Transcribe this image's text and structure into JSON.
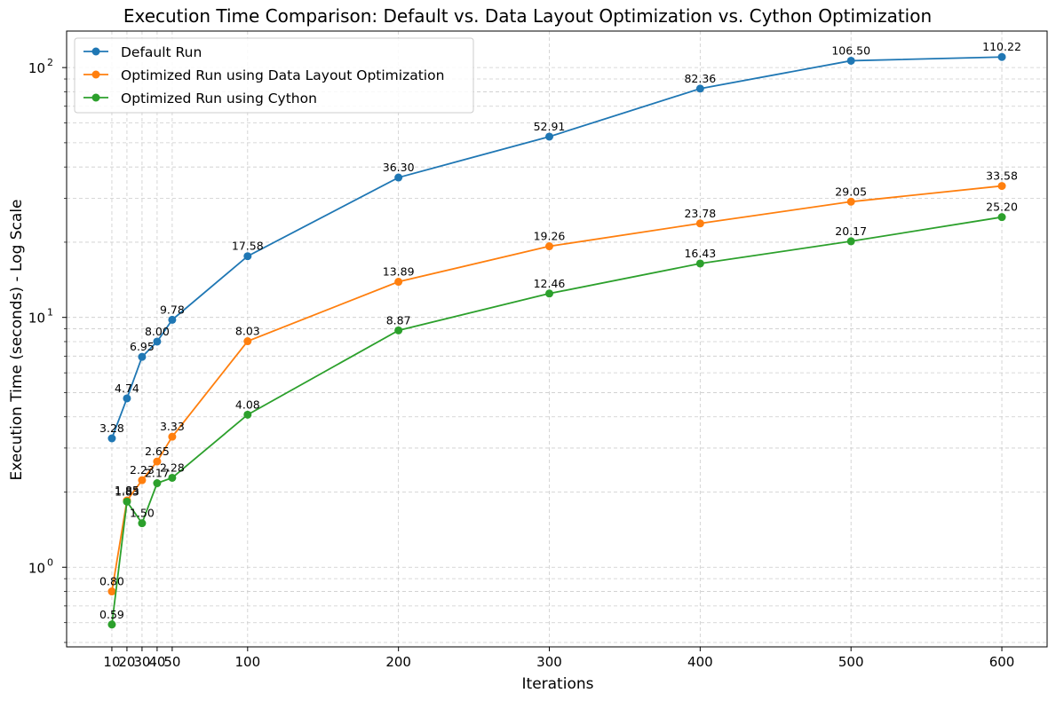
{
  "chart_data": {
    "type": "line",
    "title": "Execution Time Comparison: Default vs. Data Layout Optimization vs. Cython Optimization",
    "xlabel": "Iterations",
    "ylabel": "Execution Time (seconds) - Log Scale",
    "y_scale": "log",
    "ylim": [
      0.48,
      140
    ],
    "xlim": [
      -20,
      630
    ],
    "grid": true,
    "legend_position": "top-left",
    "x": [
      10,
      20,
      30,
      40,
      50,
      100,
      200,
      300,
      400,
      500,
      600
    ],
    "x_tick_labels": [
      "10",
      "20",
      "30",
      "40",
      "50",
      "100",
      "200",
      "300",
      "400",
      "500",
      "600"
    ],
    "y_tick_labels": [
      {
        "value": 1,
        "base": "10",
        "exp": "0"
      },
      {
        "value": 10,
        "base": "10",
        "exp": "1"
      },
      {
        "value": 100,
        "base": "10",
        "exp": "2"
      }
    ],
    "series": [
      {
        "name": "Default Run",
        "color": "#1f77b4",
        "values": [
          3.28,
          4.74,
          6.95,
          8.0,
          9.78,
          17.58,
          36.3,
          52.91,
          82.36,
          106.5,
          110.22
        ],
        "labels": [
          "3.28",
          "4.74",
          "6.95",
          "8.00",
          "9.78",
          "17.58",
          "36.30",
          "52.91",
          "82.36",
          "106.50",
          "110.22"
        ]
      },
      {
        "name": "Optimized Run using Data Layout Optimization",
        "color": "#ff7f0e",
        "values": [
          0.8,
          1.85,
          2.23,
          2.65,
          3.33,
          8.03,
          13.89,
          19.26,
          23.78,
          29.05,
          33.58
        ],
        "labels": [
          "0.80",
          "1.85",
          "2.23",
          "2.65",
          "3.33",
          "8.03",
          "13.89",
          "19.26",
          "23.78",
          "29.05",
          "33.58"
        ]
      },
      {
        "name": "Optimized Run using Cython",
        "color": "#2ca02c",
        "values": [
          0.59,
          1.83,
          1.5,
          2.17,
          2.28,
          4.08,
          8.87,
          12.46,
          16.43,
          20.17,
          25.2
        ],
        "labels": [
          "0.59",
          "1.83",
          "1.50",
          "2.17",
          "2.28",
          "4.08",
          "8.87",
          "12.46",
          "16.43",
          "20.17",
          "25.20"
        ]
      }
    ]
  }
}
